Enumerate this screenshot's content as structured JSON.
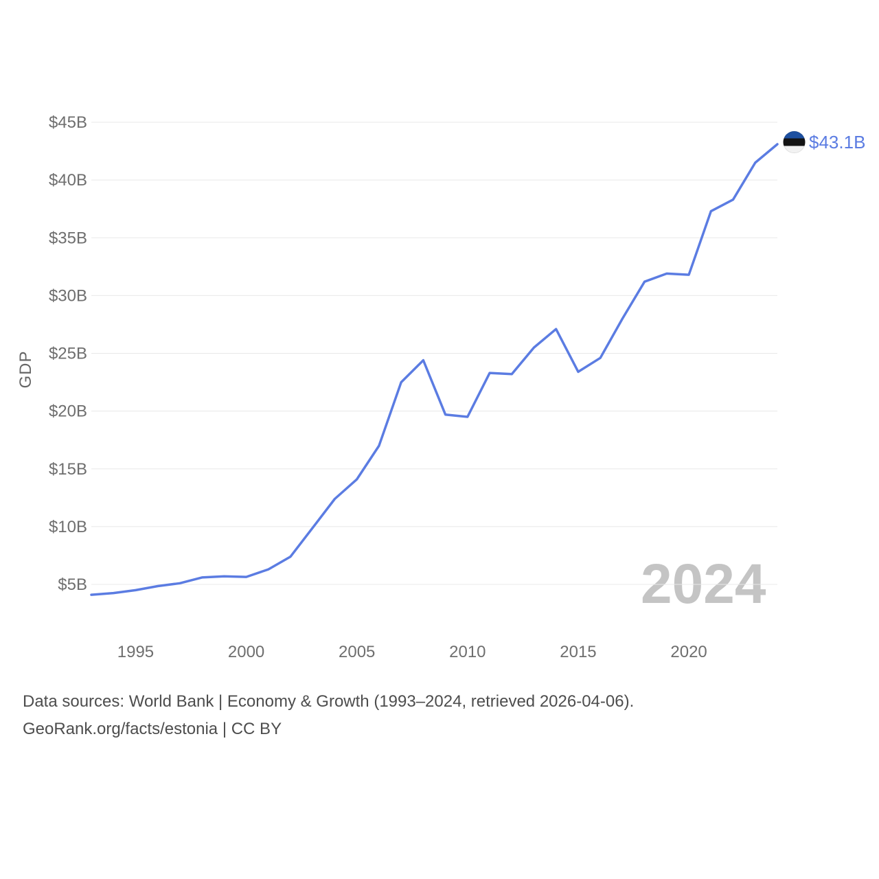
{
  "chart_data": {
    "type": "line",
    "title": "",
    "series_name": "GDP",
    "unit": "USD billions",
    "x": [
      1993,
      1994,
      1995,
      1996,
      1997,
      1998,
      1999,
      2000,
      2001,
      2002,
      2003,
      2004,
      2005,
      2006,
      2007,
      2008,
      2009,
      2010,
      2011,
      2012,
      2013,
      2014,
      2015,
      2016,
      2017,
      2018,
      2019,
      2020,
      2021,
      2022,
      2023,
      2024
    ],
    "values": [
      4.1,
      4.25,
      4.5,
      4.85,
      5.1,
      5.6,
      5.7,
      5.65,
      6.3,
      7.4,
      9.9,
      12.4,
      14.1,
      17.0,
      22.5,
      24.4,
      19.7,
      19.5,
      23.3,
      23.2,
      25.5,
      27.1,
      23.4,
      24.6,
      28.0,
      31.2,
      31.9,
      31.8,
      37.3,
      38.3,
      41.5,
      43.1
    ],
    "xlabel": "",
    "ylabel": "GDP",
    "xlim": [
      1993,
      2024
    ],
    "ylim": [
      5,
      45
    ],
    "grid": "horizontal",
    "legend": "none",
    "ytick_values": [
      5,
      10,
      15,
      20,
      25,
      30,
      35,
      40,
      45
    ],
    "ytick_labels": [
      "$5B",
      "$10B",
      "$15B",
      "$20B",
      "$25B",
      "$30B",
      "$35B",
      "$40B",
      "$45B"
    ],
    "xtick_values": [
      1995,
      2000,
      2005,
      2010,
      2015,
      2020
    ],
    "xtick_labels": [
      "1995",
      "2000",
      "2005",
      "2010",
      "2015",
      "2020"
    ],
    "line_color": "#5b7ce2",
    "end_label": "$43.1B",
    "end_marker_icon": "estonia-flag",
    "flag_colors": {
      "blue": "#1e50a0",
      "black": "#141414",
      "white": "#f2f2f2"
    },
    "watermark": "2024"
  },
  "footer": {
    "line1": "Data sources: World Bank | Economy & Growth (1993–2024, retrieved 2026-04-06).",
    "line2": "GeoRank.org/facts/estonia | CC BY"
  }
}
